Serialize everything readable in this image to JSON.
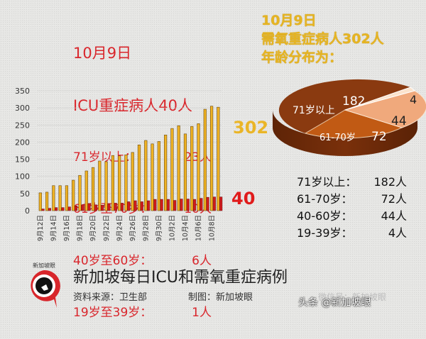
{
  "icu": {
    "date": "10月9日",
    "headline": "ICU重症病人40人",
    "rows": [
      {
        "label": "71岁以上：",
        "value": "23人"
      },
      {
        "label": "61岁至70岁：",
        "value": "10人"
      },
      {
        "label": "40岁至60岁：",
        "value": "6人"
      },
      {
        "label": "19岁至39岁：",
        "value": "1人"
      }
    ]
  },
  "oxygen": {
    "date": "10月9日",
    "headline": "需氧重症病人302人",
    "subhead": "年龄分布为："
  },
  "callouts": {
    "oxygen_latest": "302",
    "icu_latest": "40"
  },
  "legend": {
    "rows": [
      {
        "label": "71岁以上：",
        "value": "182人"
      },
      {
        "label": "61-70岁：",
        "value": "72人"
      },
      {
        "label": "40-60岁：",
        "value": "44人"
      },
      {
        "label": "19-39岁：",
        "value": "4人"
      }
    ]
  },
  "footer": {
    "title": "新加坡每日ICU和需氧重症病例",
    "source": "资料来源：卫生部",
    "maker": "制图：新加坡眼",
    "logo_text": "新加坡眼",
    "watermark": "头条 @新加坡眼",
    "watermark_faint": "微信号：新加坡眼"
  },
  "colors": {
    "oxygen_bar": "#f0b323",
    "icu_bar": "#d01c1c",
    "pie_71plus": "#8b3a0f",
    "pie_61_70": "#c45a12",
    "pie_40_60": "#f0a878",
    "pie_19_39": "#fbe3cc"
  },
  "chart_data": [
    {
      "type": "bar",
      "title": "新加坡每日ICU和需氧重症病例",
      "xlabel": "",
      "ylabel": "",
      "ylim": [
        0,
        350
      ],
      "yticks": [
        0,
        50,
        100,
        150,
        200,
        250,
        300,
        350
      ],
      "categories": [
        "9月12日",
        "9月13日",
        "9月14日",
        "9月15日",
        "9月16日",
        "9月17日",
        "9月18日",
        "9月19日",
        "9月20日",
        "9月21日",
        "9月22日",
        "9月23日",
        "9月24日",
        "9月25日",
        "9月26日",
        "9月27日",
        "9月28日",
        "9月29日",
        "9月30日",
        "10月1日",
        "10月2日",
        "10月3日",
        "10月4日",
        "10月5日",
        "10月6日",
        "10月7日",
        "10月8日",
        "10月9日"
      ],
      "xtick_labels": [
        "9月12日",
        "9月14日",
        "9月16日",
        "9月18日",
        "9月20日",
        "9月22日",
        "9月24日",
        "9月26日",
        "9月28日",
        "9月30日",
        "10月2日",
        "10月4日",
        "10月6日",
        "10月8日"
      ],
      "series": [
        {
          "name": "需氧重症病人",
          "values": [
            52,
            54,
            73,
            73,
            73,
            89,
            103,
            116,
            126,
            145,
            143,
            161,
            160,
            163,
            170,
            192,
            205,
            195,
            202,
            221,
            240,
            248,
            224,
            246,
            254,
            296,
            305,
            302
          ]
        },
        {
          "name": "ICU重症病人",
          "values": [
            5,
            7,
            9,
            9,
            11,
            14,
            17,
            21,
            17,
            16,
            19,
            22,
            22,
            26,
            29,
            26,
            29,
            33,
            33,
            33,
            30,
            34,
            34,
            33,
            36,
            39,
            40,
            40
          ]
        }
      ],
      "annotations": [
        "302",
        "40"
      ],
      "grid": true,
      "legend": "none"
    },
    {
      "type": "pie",
      "title": "10月9日 需氧重症病人302人 年龄分布为：",
      "labels": [
        "71岁以上",
        "61-70岁",
        "40-60岁",
        "19-39岁"
      ],
      "values": [
        182,
        72,
        44,
        4
      ]
    }
  ]
}
